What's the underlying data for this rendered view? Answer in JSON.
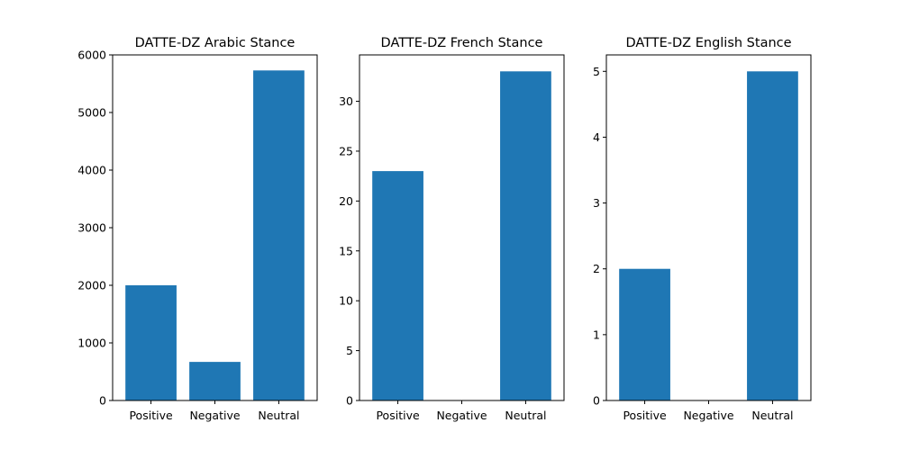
{
  "chart_data": [
    {
      "type": "bar",
      "title": "DATTE-DZ Arabic Stance",
      "categories": [
        "Positive",
        "Negative",
        "Neutral"
      ],
      "values": [
        2000,
        670,
        5730
      ],
      "ylim": [
        0,
        6000
      ],
      "yticks": [
        0,
        1000,
        2000,
        3000,
        4000,
        5000,
        6000
      ],
      "xlabel": "",
      "ylabel": "",
      "color": "#1f77b4",
      "grid": false
    },
    {
      "type": "bar",
      "title": "DATTE-DZ French Stance",
      "categories": [
        "Positive",
        "Negative",
        "Neutral"
      ],
      "values": [
        23,
        0,
        33
      ],
      "ylim": [
        0,
        34.65
      ],
      "yticks": [
        0,
        5,
        10,
        15,
        20,
        25,
        30
      ],
      "xlabel": "",
      "ylabel": "",
      "color": "#1f77b4",
      "grid": false
    },
    {
      "type": "bar",
      "title": "DATTE-DZ English Stance",
      "categories": [
        "Positive",
        "Negative",
        "Neutral"
      ],
      "values": [
        2,
        0,
        5
      ],
      "ylim": [
        0,
        5.25
      ],
      "yticks": [
        0,
        1,
        2,
        3,
        4,
        5
      ],
      "xlabel": "",
      "ylabel": "",
      "color": "#1f77b4",
      "grid": false
    }
  ]
}
